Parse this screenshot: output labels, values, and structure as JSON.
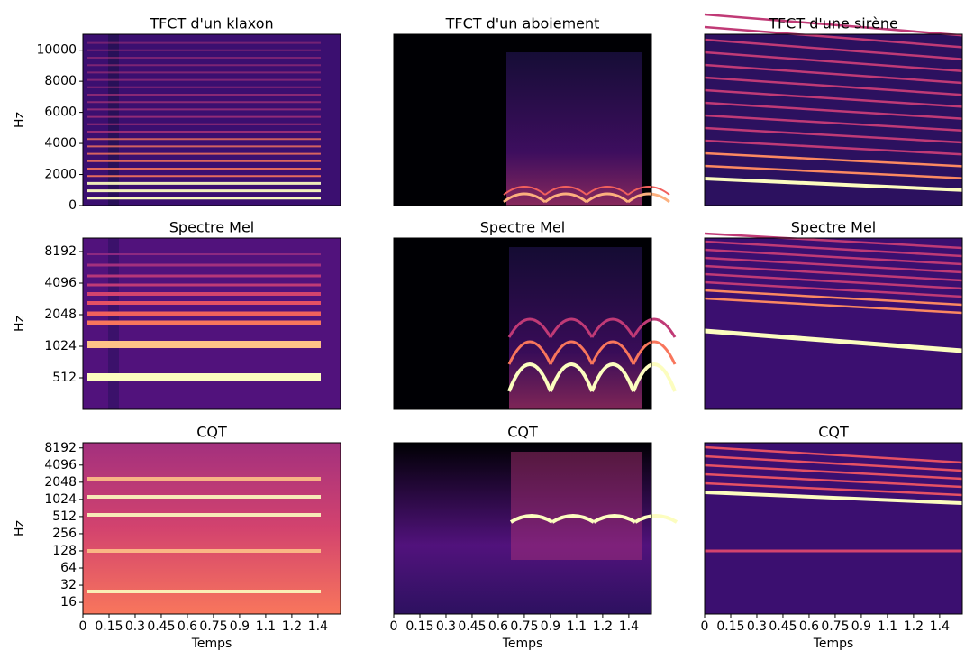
{
  "chart_data": [
    {
      "type": "spectrogram",
      "title": "TFCT d'un klaxon",
      "ylabel": "Hz",
      "ylim": [
        0,
        11025
      ],
      "yticks": [
        0,
        2000,
        4000,
        6000,
        8000,
        10000
      ]
    },
    {
      "type": "spectrogram",
      "title": "TFCT d'un aboiement"
    },
    {
      "type": "spectrogram",
      "title": "TFCT d'une sirène"
    },
    {
      "type": "spectrogram",
      "title": "Spectre Mel",
      "ylabel": "Hz",
      "yscale": "log",
      "ylim": [
        256,
        11025
      ],
      "yticks": [
        512,
        1024,
        2048,
        4096,
        8192
      ]
    },
    {
      "type": "spectrogram",
      "title": "Spectre Mel"
    },
    {
      "type": "spectrogram",
      "title": "Spectre Mel"
    },
    {
      "type": "spectrogram",
      "title": "CQT",
      "ylabel": "Hz",
      "xlabel": "Temps",
      "yscale": "log",
      "ylim": [
        10,
        10100
      ],
      "yticks": [
        16,
        32,
        64,
        128,
        256,
        512,
        1024,
        2048,
        4096,
        8192
      ],
      "xlim": [
        0,
        1.48
      ],
      "xticks": [
        0,
        0.15,
        0.3,
        0.45,
        0.6,
        0.75,
        0.9,
        {
          "value": 1.05,
          "label": "1.1"
        },
        1.2,
        {
          "value": 1.35,
          "label": "1.4"
        }
      ]
    },
    {
      "type": "spectrogram",
      "title": "CQT",
      "xlabel": "Temps",
      "xlim": [
        0,
        1.48
      ],
      "xticks": [
        0,
        0.15,
        0.3,
        0.45,
        0.6,
        0.75,
        0.9,
        {
          "value": 1.05,
          "label": "1.1"
        },
        1.2,
        {
          "value": 1.35,
          "label": "1.4"
        }
      ]
    },
    {
      "type": "spectrogram",
      "title": "CQT",
      "xlabel": "Temps",
      "xlim": [
        0,
        1.48
      ],
      "xticks": [
        0,
        0.15,
        0.3,
        0.45,
        0.6,
        0.75,
        0.9,
        {
          "value": 1.05,
          "label": "1.1"
        },
        1.2,
        {
          "value": 1.35,
          "label": "1.4"
        }
      ]
    }
  ]
}
